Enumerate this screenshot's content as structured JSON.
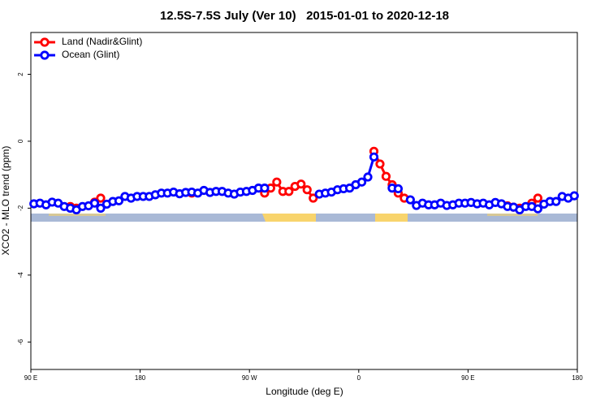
{
  "chart_data": {
    "type": "line",
    "title": "12.5S-7.5S July (Ver 10)   2015-01-01 to 2020-12-18",
    "x_label": "Longitude (deg E)",
    "y_label": "XCO2 - MLO trend (ppm)",
    "xlim": [
      90,
      540
    ],
    "ylim": [
      -6.82,
      3.25
    ],
    "xticks": [
      {
        "value": 90,
        "label": "90 E"
      },
      180,
      {
        "value": 270,
        "label": "90 W"
      },
      {
        "value": 360,
        "label": "0"
      },
      {
        "value": 450,
        "label": "90 E"
      },
      {
        "value": 540,
        "label": "180"
      }
    ],
    "yticks": [
      -6,
      -4,
      -2,
      0,
      2
    ],
    "legend": "topleft",
    "grid": false,
    "x": [
      92.5,
      97.5,
      102.5,
      107.5,
      112.5,
      117.5,
      122.5,
      127.5,
      132.5,
      137.5,
      142.5,
      147.5,
      152.5,
      157.5,
      162.5,
      167.5,
      172.5,
      177.5,
      182.5,
      187.5,
      192.5,
      197.5,
      202.5,
      207.5,
      212.5,
      217.5,
      222.5,
      227.5,
      232.5,
      237.5,
      242.5,
      247.5,
      252.5,
      257.5,
      262.5,
      267.5,
      272.5,
      277.5,
      282.5,
      287.5,
      292.5,
      297.5,
      302.5,
      307.5,
      312.5,
      317.5,
      322.5,
      327.5,
      332.5,
      337.5,
      342.5,
      347.5,
      352.5,
      357.5,
      362.5,
      367.5,
      372.5,
      377.5,
      382.5,
      387.5,
      392.5,
      397.5,
      402.5,
      407.5,
      412.5,
      417.5,
      422.5,
      427.5,
      432.5,
      437.5,
      442.5,
      447.5,
      452.5,
      457.5,
      462.5,
      467.5,
      472.5,
      477.5,
      482.5,
      487.5,
      492.5,
      497.5,
      502.5,
      507.5,
      512.5,
      517.5,
      522.5,
      527.5,
      532.5,
      537.5
    ],
    "series": [
      {
        "name": "Land (Nadir&Glint)",
        "color": "#ff0000",
        "values": [
          null,
          null,
          null,
          null,
          null,
          null,
          -1.95,
          -2.0,
          null,
          null,
          -1.82,
          -1.7,
          null,
          null,
          null,
          null,
          null,
          null,
          null,
          null,
          null,
          null,
          null,
          null,
          null,
          null,
          -1.55,
          null,
          null,
          null,
          null,
          null,
          null,
          null,
          null,
          null,
          null,
          null,
          -1.55,
          -1.4,
          -1.22,
          -1.5,
          -1.5,
          -1.35,
          -1.28,
          -1.45,
          -1.7,
          null,
          null,
          null,
          null,
          null,
          null,
          null,
          null,
          null,
          -0.3,
          -0.68,
          -1.05,
          -1.3,
          -1.55,
          -1.7,
          null,
          null,
          null,
          null,
          null,
          null,
          null,
          null,
          null,
          null,
          null,
          null,
          null,
          null,
          null,
          null,
          -1.93,
          -1.97,
          -2.0,
          null,
          -1.85,
          -1.7,
          null,
          null,
          null,
          null,
          null,
          null
        ]
      },
      {
        "name": "Ocean (Glint)",
        "color": "#0000ff",
        "values": [
          -1.87,
          -1.85,
          -1.9,
          -1.82,
          -1.85,
          -1.95,
          -2.0,
          -2.05,
          -1.95,
          -1.93,
          -1.85,
          -2.0,
          -1.88,
          -1.8,
          -1.78,
          -1.65,
          -1.7,
          -1.65,
          -1.65,
          -1.65,
          -1.6,
          -1.55,
          -1.55,
          -1.52,
          -1.57,
          -1.53,
          -1.52,
          -1.55,
          -1.47,
          -1.53,
          -1.5,
          -1.5,
          -1.55,
          -1.58,
          -1.52,
          -1.5,
          -1.47,
          -1.4,
          -1.4,
          null,
          null,
          null,
          null,
          null,
          null,
          null,
          null,
          -1.58,
          -1.55,
          -1.52,
          -1.45,
          -1.42,
          -1.4,
          -1.3,
          -1.22,
          -1.07,
          -0.47,
          null,
          null,
          -1.4,
          -1.42,
          null,
          -1.75,
          -1.92,
          -1.85,
          -1.9,
          -1.9,
          -1.85,
          -1.92,
          -1.9,
          -1.85,
          -1.85,
          -1.83,
          -1.87,
          -1.85,
          -1.9,
          -1.83,
          -1.87,
          -1.95,
          -1.97,
          -2.05,
          -1.95,
          -1.95,
          -2.02,
          -1.88,
          -1.8,
          -1.8,
          -1.65,
          -1.7,
          -1.63
        ]
      }
    ]
  }
}
